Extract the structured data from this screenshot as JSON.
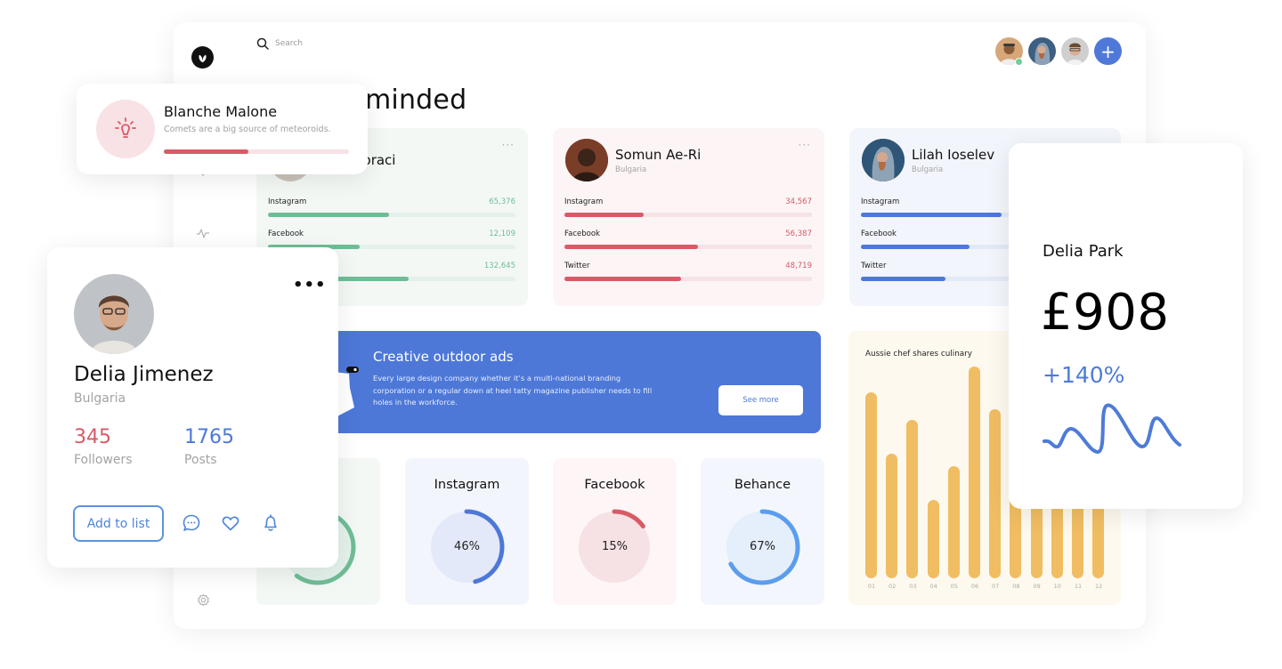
{
  "search": {
    "placeholder": "Search"
  },
  "page": {
    "title": "minded"
  },
  "header": {
    "avatars": [
      {
        "name": "avatar-1",
        "online": true,
        "skin": "#b77b52",
        "bg": "#d7a77a"
      },
      {
        "name": "avatar-2",
        "online": false,
        "skin": "#c79a83",
        "bg": "#3c5f82"
      },
      {
        "name": "avatar-3",
        "online": false,
        "skin": "#d8ad93",
        "bg": "#c9c9c9"
      }
    ],
    "add_label": "+"
  },
  "people": [
    {
      "name": "goraci",
      "country": "",
      "accent": "#6fbd96",
      "track": "#e6f3ec",
      "bg": "#f3f8f5",
      "stats": [
        {
          "label": "Instagram",
          "value": "65,376",
          "pct": 49
        },
        {
          "label": "Facebook",
          "value": "12,109",
          "pct": 37
        },
        {
          "label": "",
          "value": "132,645",
          "pct": 57
        }
      ]
    },
    {
      "name": "Somun Ae-Ri",
      "country": "Bulgaria",
      "accent": "#d95a66",
      "track": "#f7e2e5",
      "bg": "#fcf4f5",
      "stats": [
        {
          "label": "Instagram",
          "value": "34,567",
          "pct": 32
        },
        {
          "label": "Facebook",
          "value": "56,387",
          "pct": 54
        },
        {
          "label": "Twitter",
          "value": "48,719",
          "pct": 47
        }
      ]
    },
    {
      "name": "Lilah Ioselev",
      "country": "Bulgaria",
      "accent": "#4d78d8",
      "track": "#e2e9f7",
      "bg": "#f3f5fc",
      "stats": [
        {
          "label": "Instagram",
          "value": "",
          "pct": 57
        },
        {
          "label": "Facebook",
          "value": "",
          "pct": 44
        },
        {
          "label": "Twitter",
          "value": "",
          "pct": 34
        }
      ]
    }
  ],
  "banner": {
    "title": "Creative outdoor ads",
    "text": "Every large design company whether it’s a multi-national branding corporation or a regular down at heel tatty magazine publisher needs to fill holes in the workforce.",
    "button": "See more"
  },
  "rings": [
    {
      "title": "",
      "value": "",
      "pct": 60,
      "color": "#6fbd96",
      "fill": "#e5f2eb",
      "bg": "#f3f8f5"
    },
    {
      "title": "Instagram",
      "value": "46%",
      "pct": 46,
      "color": "#4d78d8",
      "fill": "#e3e9f8",
      "bg": "#f3f5fd"
    },
    {
      "title": "Facebook",
      "value": "15%",
      "pct": 15,
      "color": "#d95a66",
      "fill": "#f6e1e4",
      "bg": "#fdf5f6"
    },
    {
      "title": "Behance",
      "value": "67%",
      "pct": 67,
      "color": "#5b9ded",
      "fill": "#e5eefb",
      "bg": "#f3f7fd"
    }
  ],
  "chart_data": {
    "type": "bar",
    "title": "Aussie chef shares culinary",
    "categories": [
      "01",
      "02",
      "03",
      "04",
      "05",
      "06",
      "07",
      "08",
      "09",
      "10",
      "11",
      "12"
    ],
    "values": [
      88,
      59,
      75,
      37,
      53,
      100,
      80,
      68,
      63,
      70,
      60,
      66
    ],
    "xlabel": "",
    "ylabel": "",
    "ylim": [
      0,
      100
    ],
    "grid": false,
    "bar_color": "#f0bd62"
  },
  "notification": {
    "name": "Blanche Malone",
    "text": "Comets are a big source of meteoroids.",
    "progress_pct": 46
  },
  "profile": {
    "name": "Delia Jimenez",
    "country": "Bulgaria",
    "followers_value": "345",
    "followers_label": "Followers",
    "posts_value": "1765",
    "posts_label": "Posts",
    "add_button": "Add to list",
    "more": "•••"
  },
  "earnings": {
    "name": "Delia Park",
    "amount": "£908",
    "change": "+140%"
  },
  "colors": {
    "accent_blue": "#4d78d8",
    "accent_red": "#d95a66",
    "accent_green": "#6fbd96",
    "accent_yellow": "#f0bd62"
  }
}
